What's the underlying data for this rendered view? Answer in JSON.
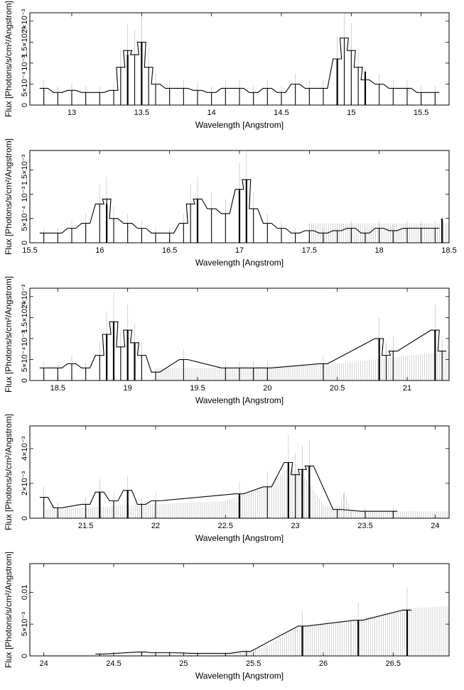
{
  "chart_data": [
    {
      "type": "line",
      "xlabel": "Wavelength [Angstrom]",
      "ylabel": "Flux [Photons/s/cm²/Angstrom]",
      "xlim": [
        12.7,
        15.7
      ],
      "ylim": [
        0,
        0.0022
      ],
      "xticks": [
        13,
        13.5,
        14,
        14.5,
        15,
        15.5
      ],
      "xtick_labels": [
        "13",
        "13.5",
        "14",
        "14.5",
        "15",
        "15.5"
      ],
      "yticks": [
        0,
        0.0005,
        0.001,
        0.0015,
        0.002
      ],
      "ytick_labels": [
        "0",
        "5×10⁻⁴",
        "10⁻³",
        "1.5×10⁻³",
        "2×10⁻³"
      ],
      "x": [
        12.8,
        12.9,
        13.0,
        13.1,
        13.2,
        13.3,
        13.35,
        13.4,
        13.45,
        13.5,
        13.55,
        13.6,
        13.7,
        13.8,
        13.9,
        14.0,
        14.1,
        14.2,
        14.3,
        14.4,
        14.5,
        14.6,
        14.7,
        14.8,
        14.9,
        14.95,
        15.0,
        15.05,
        15.1,
        15.2,
        15.3,
        15.4,
        15.5,
        15.6
      ],
      "y": [
        0.0004,
        0.0003,
        0.00035,
        0.0003,
        0.0003,
        0.00035,
        0.0009,
        0.0013,
        0.0012,
        0.0015,
        0.0009,
        0.0005,
        0.0004,
        0.0004,
        0.00035,
        0.0003,
        0.0004,
        0.0004,
        0.0003,
        0.0004,
        0.0003,
        0.0005,
        0.0004,
        0.0004,
        0.0011,
        0.0016,
        0.0013,
        0.0009,
        0.0006,
        0.0005,
        0.0004,
        0.0004,
        0.0003,
        0.0003
      ],
      "bars": [
        [
          13.4,
          0.0012
        ],
        [
          13.5,
          0.0015
        ],
        [
          14.9,
          0.0011
        ],
        [
          15.1,
          0.0008
        ]
      ],
      "grey_band": [],
      "grid": false
    },
    {
      "type": "line",
      "xlabel": "Wavelength [Angstrom]",
      "ylabel": "Flux [Photons/s/cm²/Angstrom]",
      "xlim": [
        15.5,
        18.5
      ],
      "ylim": [
        0,
        0.0019
      ],
      "xticks": [
        15.5,
        16,
        16.5,
        17,
        17.5,
        18,
        18.5
      ],
      "xtick_labels": [
        "15.5",
        "16",
        "16.5",
        "17",
        "17.5",
        "18",
        "18.5"
      ],
      "yticks": [
        0,
        0.0005,
        0.001,
        0.0015
      ],
      "ytick_labels": [
        "0",
        "5×10⁻⁴",
        "10⁻³",
        "1.5×10⁻³"
      ],
      "x": [
        15.6,
        15.7,
        15.8,
        15.9,
        16.0,
        16.05,
        16.1,
        16.2,
        16.3,
        16.4,
        16.5,
        16.6,
        16.65,
        16.7,
        16.8,
        16.9,
        17.0,
        17.05,
        17.1,
        17.2,
        17.3,
        17.4,
        17.5,
        17.6,
        17.7,
        17.8,
        17.9,
        18.0,
        18.1,
        18.2,
        18.3,
        18.4
      ],
      "y": [
        0.0002,
        0.0002,
        0.0003,
        0.0004,
        0.0008,
        0.0009,
        0.0005,
        0.0004,
        0.0003,
        0.0002,
        0.0002,
        0.0004,
        0.0008,
        0.0009,
        0.0007,
        0.0006,
        0.0011,
        0.0013,
        0.0007,
        0.0004,
        0.0003,
        0.0002,
        0.00025,
        0.0002,
        0.00025,
        0.0003,
        0.0002,
        0.0003,
        0.00025,
        0.0003,
        0.0003,
        0.0003
      ],
      "bars": [
        [
          16.05,
          0.0008
        ],
        [
          16.7,
          0.0009
        ],
        [
          17.0,
          0.0011
        ],
        [
          17.05,
          0.0013
        ],
        [
          18.45,
          0.0005
        ]
      ],
      "grey_band": [
        [
          17.5,
          0.0004
        ],
        [
          18.5,
          0.0004
        ]
      ],
      "grid": false
    },
    {
      "type": "line",
      "xlabel": "Wavelength [Angstrom]",
      "ylabel": "Flux [Photons/s/cm²/Angstrom]",
      "xlim": [
        18.3,
        21.3
      ],
      "ylim": [
        0,
        0.0022
      ],
      "xticks": [
        18.5,
        19,
        19.5,
        20,
        20.5,
        21
      ],
      "xtick_labels": [
        "18.5",
        "19",
        "19.5",
        "20",
        "20.5",
        "21"
      ],
      "yticks": [
        0,
        0.0005,
        0.001,
        0.0015,
        0.002
      ],
      "ytick_labels": [
        "0",
        "5×10⁻⁴",
        "10⁻³",
        "1.5×10⁻³",
        "2×10⁻³"
      ],
      "x": [
        18.4,
        18.5,
        18.6,
        18.7,
        18.8,
        18.85,
        18.9,
        18.95,
        19.0,
        19.05,
        19.1,
        19.2,
        19.4,
        19.7,
        19.8,
        19.9,
        20.0,
        20.4,
        20.8,
        20.85,
        20.9,
        21.2,
        21.25
      ],
      "y": [
        0.0003,
        0.0003,
        0.0004,
        0.0003,
        0.0006,
        0.0011,
        0.0014,
        0.0008,
        0.0012,
        0.0009,
        0.0006,
        0.0002,
        0.0005,
        0.0003,
        0.0003,
        0.0003,
        0.0003,
        0.0004,
        0.001,
        0.0006,
        0.0007,
        0.0012,
        0.0007
      ],
      "bars": [
        [
          18.85,
          0.0011
        ],
        [
          18.9,
          0.0014
        ],
        [
          19.0,
          0.0012
        ],
        [
          19.05,
          0.0009
        ],
        [
          20.8,
          0.001
        ],
        [
          21.2,
          0.0012
        ]
      ],
      "grey_band": [
        [
          19.2,
          0.0003
        ],
        [
          19.8,
          0.0003
        ],
        [
          20.5,
          0.0004
        ],
        [
          21.3,
          0.0007
        ]
      ],
      "grid": false
    },
    {
      "type": "line",
      "xlabel": "Wavelength [Angstrom]",
      "ylabel": "Flux [Photons/s/cm²/Angstrom]",
      "xlim": [
        21.1,
        24.1
      ],
      "ylim": [
        0,
        0.0053
      ],
      "xticks": [
        21.5,
        22,
        22.5,
        23,
        23.5,
        24
      ],
      "xtick_labels": [
        "21.5",
        "22",
        "22.5",
        "23",
        "23.5",
        "24"
      ],
      "yticks": [
        0,
        0.002,
        0.004
      ],
      "ytick_labels": [
        "0",
        "2×10⁻³",
        "4×10⁻³"
      ],
      "x": [
        21.2,
        21.3,
        21.5,
        21.6,
        21.7,
        21.8,
        21.9,
        22.0,
        22.6,
        22.8,
        22.95,
        23.0,
        23.05,
        23.1,
        23.3,
        23.5,
        23.7
      ],
      "y": [
        0.0012,
        0.0006,
        0.0008,
        0.0015,
        0.001,
        0.0016,
        0.0008,
        0.001,
        0.0014,
        0.0018,
        0.0032,
        0.0025,
        0.0028,
        0.003,
        0.0005,
        0.0004,
        0.0004
      ],
      "bars": [
        [
          21.6,
          0.0015
        ],
        [
          21.8,
          0.0016
        ],
        [
          22.6,
          0.0014
        ],
        [
          22.95,
          0.0032
        ],
        [
          23.05,
          0.0028
        ],
        [
          23.1,
          0.003
        ]
      ],
      "grey_band": [
        [
          21.2,
          0.0005
        ],
        [
          22.0,
          0.0008
        ],
        [
          22.5,
          0.001
        ],
        [
          22.8,
          0.0018
        ],
        [
          22.95,
          0.0029
        ],
        [
          23.05,
          0.0025
        ],
        [
          23.2,
          0.0008
        ],
        [
          23.3,
          0.0004
        ],
        [
          23.35,
          0.0015
        ],
        [
          23.4,
          0.0004
        ],
        [
          24.1,
          0.0004
        ]
      ],
      "grid": false
    },
    {
      "type": "line",
      "xlabel": "Wavelength [Angstrom]",
      "ylabel": "Flux [Photons/s/cm²/Angstrom]",
      "xlim": [
        23.9,
        26.9
      ],
      "ylim": [
        0,
        0.0145
      ],
      "xticks": [
        24,
        24.5,
        25,
        25.5,
        26,
        26.5
      ],
      "xtick_labels": [
        "24",
        "24.5",
        "25",
        "25.5",
        "26",
        "26.5"
      ],
      "yticks": [
        0,
        0.005,
        0.01
      ],
      "ytick_labels": [
        "0",
        "5×10⁻³",
        "0.01"
      ],
      "x": [
        24.4,
        24.7,
        24.8,
        24.9,
        25.1,
        25.3,
        25.45,
        25.85,
        26.25,
        26.6
      ],
      "y": [
        0.0003,
        0.0006,
        0.0005,
        0.0005,
        0.0004,
        0.0004,
        0.0007,
        0.0047,
        0.0056,
        0.0072
      ],
      "bars": [
        [
          25.85,
          0.0047
        ],
        [
          26.25,
          0.0056
        ],
        [
          26.6,
          0.0072
        ]
      ],
      "grey_band": [
        [
          24.0,
          0.0002
        ],
        [
          25.3,
          0.0003
        ],
        [
          25.6,
          0.0015
        ],
        [
          25.8,
          0.0045
        ],
        [
          26.2,
          0.0055
        ],
        [
          26.6,
          0.0075
        ],
        [
          26.9,
          0.0078
        ]
      ],
      "grid": false
    }
  ]
}
